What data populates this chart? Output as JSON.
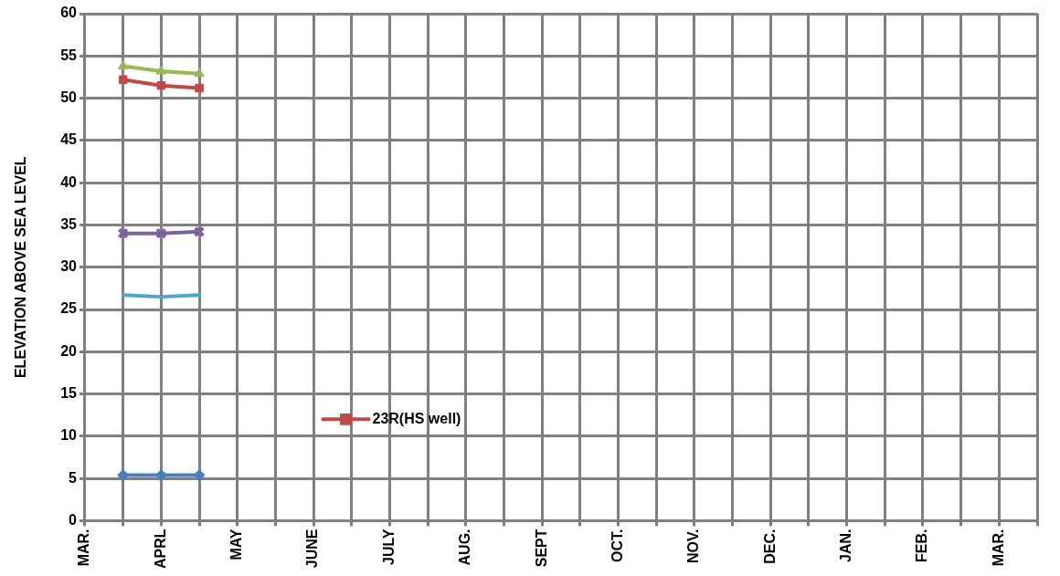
{
  "chart_data": {
    "type": "line",
    "ylabel": "ELEVATION ABOVE SEA LEVEL",
    "categories": [
      "MAR.",
      null,
      "APRL",
      null,
      "MAY",
      null,
      "JUNE",
      null,
      "JULY",
      null,
      "AUG.",
      null,
      "SEPT",
      null,
      "OCT.",
      null,
      "NOV.",
      null,
      "DEC.",
      null,
      "JAN.",
      null,
      "FEB.",
      null,
      "MAR.",
      null
    ],
    "series": [
      {
        "color": "#4a7ebb",
        "marker": "diamond",
        "values": [
          null,
          5.4,
          5.4,
          5.4,
          null,
          null,
          null,
          null,
          null,
          null,
          null,
          null,
          null,
          null,
          null,
          null,
          null,
          null,
          null,
          null,
          null,
          null,
          null,
          null,
          null,
          null
        ]
      },
      {
        "name": "23R(HS well)",
        "color": "#be4b48",
        "marker": "square",
        "values": [
          null,
          52.2,
          51.5,
          51.2,
          null,
          null,
          null,
          null,
          null,
          null,
          null,
          null,
          null,
          null,
          null,
          null,
          null,
          null,
          null,
          null,
          null,
          null,
          null,
          null,
          null,
          null
        ]
      },
      {
        "color": "#98b954",
        "marker": "triangle",
        "values": [
          null,
          53.8,
          53.2,
          52.9,
          null,
          null,
          null,
          null,
          null,
          null,
          null,
          null,
          null,
          null,
          null,
          null,
          null,
          null,
          null,
          null,
          null,
          null,
          null,
          null,
          null,
          null
        ]
      },
      {
        "color": "#7d60a0",
        "marker": "cross",
        "values": [
          null,
          34.0,
          34.0,
          34.2,
          null,
          null,
          null,
          null,
          null,
          null,
          null,
          null,
          null,
          null,
          null,
          null,
          null,
          null,
          null,
          null,
          null,
          null,
          null,
          null,
          null,
          null
        ]
      },
      {
        "color": "#46aac5",
        "marker": "none",
        "values": [
          null,
          26.7,
          26.5,
          26.7,
          null,
          null,
          null,
          null,
          null,
          null,
          null,
          null,
          null,
          null,
          null,
          null,
          null,
          null,
          null,
          null,
          null,
          null,
          null,
          null,
          null,
          null
        ]
      }
    ],
    "ylim": [
      0,
      60
    ],
    "yticks": [
      0,
      5,
      10,
      15,
      20,
      25,
      30,
      35,
      40,
      45,
      50,
      55,
      60
    ],
    "grid": true,
    "legend": "center"
  }
}
